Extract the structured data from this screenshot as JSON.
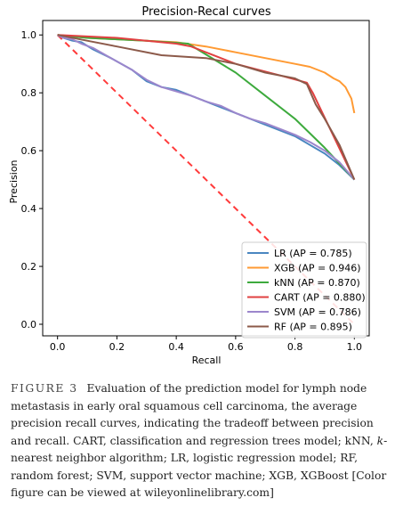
{
  "chart_data": {
    "type": "line",
    "title": "Precision-Recal curves",
    "xlabel": "Recall",
    "ylabel": "Precision",
    "xlim": [
      -0.05,
      1.05
    ],
    "ylim": [
      -0.04,
      1.05
    ],
    "xticks": [
      "0.0",
      "0.2",
      "0.4",
      "0.6",
      "0.8",
      "1.0"
    ],
    "yticks": [
      "0.0",
      "0.2",
      "0.4",
      "0.6",
      "0.8",
      "1.0"
    ],
    "grid": false,
    "legend_position": "lower-right",
    "baseline": {
      "x": [
        0,
        1
      ],
      "y": [
        1,
        0
      ],
      "color": "#ff3b3b",
      "style": "dashed"
    },
    "series": [
      {
        "name": "LR (AP = 0.785)",
        "color": "#4a86c0",
        "x": [
          0,
          0.02,
          0.05,
          0.08,
          0.12,
          0.18,
          0.25,
          0.3,
          0.35,
          0.4,
          0.45,
          0.5,
          0.55,
          0.6,
          0.65,
          0.7,
          0.75,
          0.8,
          0.85,
          0.9,
          0.95,
          1.0
        ],
        "y": [
          1.0,
          0.99,
          0.98,
          0.975,
          0.95,
          0.92,
          0.88,
          0.84,
          0.82,
          0.81,
          0.79,
          0.77,
          0.75,
          0.73,
          0.71,
          0.69,
          0.67,
          0.65,
          0.62,
          0.59,
          0.55,
          0.5
        ]
      },
      {
        "name": "XGB (AP = 0.946)",
        "color": "#ff9a33",
        "x": [
          0,
          0.05,
          0.1,
          0.2,
          0.3,
          0.4,
          0.5,
          0.6,
          0.7,
          0.8,
          0.85,
          0.9,
          0.93,
          0.95,
          0.97,
          0.98,
          0.99,
          1.0
        ],
        "y": [
          1.0,
          0.995,
          0.99,
          0.985,
          0.98,
          0.975,
          0.96,
          0.94,
          0.92,
          0.9,
          0.89,
          0.87,
          0.85,
          0.84,
          0.82,
          0.8,
          0.78,
          0.73
        ]
      },
      {
        "name": "kNN (AP = 0.870)",
        "color": "#3daa3d",
        "x": [
          0,
          0.1,
          0.2,
          0.3,
          0.44,
          0.6,
          0.7,
          0.8,
          0.9,
          1.0
        ],
        "y": [
          1.0,
          0.99,
          0.985,
          0.98,
          0.97,
          0.87,
          0.79,
          0.71,
          0.61,
          0.5
        ]
      },
      {
        "name": "CART (AP = 0.880)",
        "color": "#e04040",
        "x": [
          0,
          0.2,
          0.4,
          0.45,
          0.6,
          0.75,
          0.84,
          0.86,
          1.0
        ],
        "y": [
          1.0,
          0.99,
          0.97,
          0.96,
          0.9,
          0.86,
          0.835,
          0.8,
          0.5
        ]
      },
      {
        "name": "SVM (AP = 0.786)",
        "color": "#9c86cc",
        "x": [
          0,
          0.02,
          0.05,
          0.08,
          0.12,
          0.18,
          0.25,
          0.3,
          0.35,
          0.4,
          0.45,
          0.5,
          0.55,
          0.6,
          0.65,
          0.7,
          0.75,
          0.8,
          0.85,
          0.9,
          0.95,
          1.0
        ],
        "y": [
          1.0,
          0.99,
          0.985,
          0.97,
          0.955,
          0.92,
          0.88,
          0.845,
          0.82,
          0.805,
          0.79,
          0.77,
          0.755,
          0.73,
          0.71,
          0.695,
          0.675,
          0.655,
          0.63,
          0.6,
          0.56,
          0.5
        ]
      },
      {
        "name": "RF (AP = 0.895)",
        "color": "#8c5a4a",
        "x": [
          0,
          0.1,
          0.2,
          0.35,
          0.5,
          0.6,
          0.7,
          0.8,
          0.84,
          0.87,
          0.9,
          0.95,
          1.0
        ],
        "y": [
          1.0,
          0.98,
          0.96,
          0.93,
          0.92,
          0.9,
          0.87,
          0.85,
          0.83,
          0.76,
          0.71,
          0.62,
          0.5
        ]
      }
    ]
  },
  "caption": {
    "figure_label": "FIGURE 3",
    "text_part1": "Evaluation of the prediction model for lymph node metastasis in early oral squamous cell carcinoma, the average precision recall curves, indicating the tradeoff between precision and recall. CART, classification and regression trees model; kNN, ",
    "italic_text": "k",
    "text_part2": "-nearest neighbor algorithm; LR, logistic regression model; RF, random forest; SVM, support vector machine; XGB, XGBoost [Color figure can be viewed at wileyonlinelibrary.com]"
  }
}
